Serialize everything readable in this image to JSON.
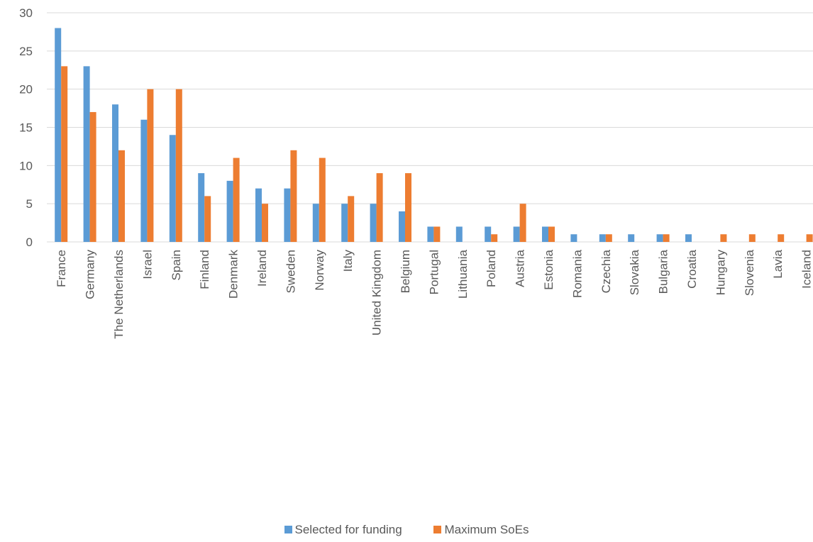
{
  "chart_data": {
    "type": "bar",
    "title": "",
    "xlabel": "",
    "ylabel": "",
    "ylim": [
      0,
      30
    ],
    "yticks": [
      0,
      5,
      10,
      15,
      20,
      25,
      30
    ],
    "grid": true,
    "legend_position": "bottom",
    "categories": [
      "France",
      "Germany",
      "The Netherlands",
      "Israel",
      "Spain",
      "Finland",
      "Denmark",
      "Ireland",
      "Sweden",
      "Norway",
      "Italy",
      "United Kingdom",
      "Belgium",
      "Portugal",
      "Lithuania",
      "Poland",
      "Austria",
      "Estonia",
      "Romania",
      "Czechia",
      "Slovakia",
      "Bulgaria",
      "Croatia",
      "Hungary",
      "Slovenia",
      "Lavia",
      "Iceland"
    ],
    "series": [
      {
        "name": "Selected for funding",
        "color": "#5B9BD5",
        "values": [
          28,
          23,
          18,
          16,
          14,
          9,
          8,
          7,
          7,
          5,
          5,
          5,
          4,
          2,
          2,
          2,
          2,
          2,
          1,
          1,
          1,
          1,
          1,
          0,
          0,
          0,
          0
        ]
      },
      {
        "name": "Maximum SoEs",
        "color": "#ED7D31",
        "values": [
          23,
          17,
          12,
          20,
          20,
          6,
          11,
          5,
          12,
          11,
          6,
          9,
          9,
          2,
          0,
          1,
          5,
          2,
          0,
          1,
          0,
          1,
          0,
          1,
          1,
          1,
          1
        ]
      }
    ]
  },
  "colors": {
    "grid": "#D9D9D9",
    "axis": "#D9D9D9",
    "text": "#595959"
  }
}
